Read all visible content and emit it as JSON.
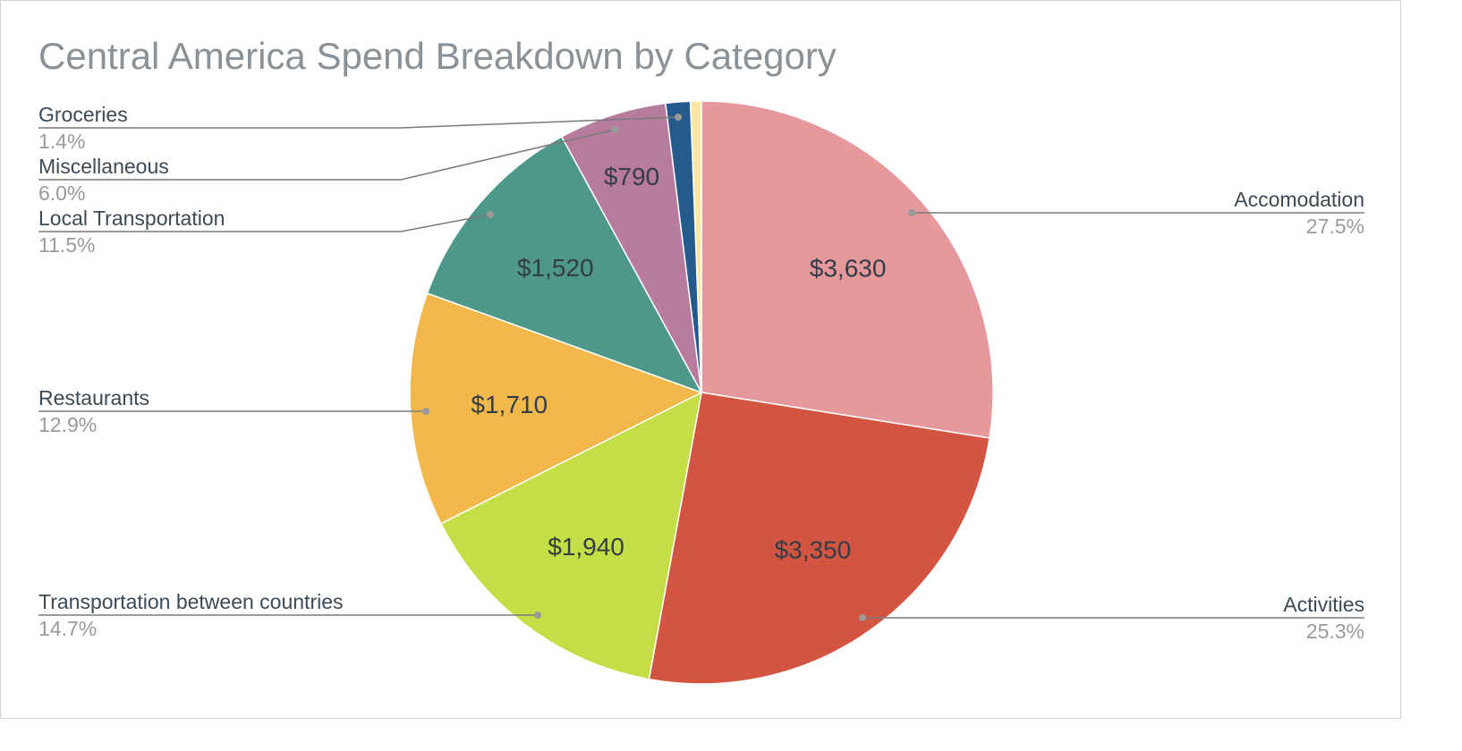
{
  "chart_data": {
    "type": "pie",
    "title": "Central America Spend Breakdown by Category",
    "slices": [
      {
        "label": "Accomodation",
        "value": 3630,
        "value_label": "$3,630",
        "percent": "27.5%",
        "color": "#e6999c"
      },
      {
        "label": "Activities",
        "value": 3350,
        "value_label": "$3,350",
        "percent": "25.3%",
        "color": "#d35541"
      },
      {
        "label": "Transportation between countries",
        "value": 1940,
        "value_label": "$1,940",
        "percent": "14.7%",
        "color": "#c4df45"
      },
      {
        "label": "Restaurants",
        "value": 1710,
        "value_label": "$1,710",
        "percent": "12.9%",
        "color": "#f2b84c"
      },
      {
        "label": "Local Transportation",
        "value": 1520,
        "value_label": "$1,520",
        "percent": "11.5%",
        "color": "#4e9889"
      },
      {
        "label": "Miscellaneous",
        "value": 790,
        "value_label": "$790",
        "percent": "6.0%",
        "color": "#b77c9d"
      },
      {
        "label": "Groceries",
        "value": 180,
        "value_label": "",
        "percent": "1.4%",
        "color": "#255b8c"
      },
      {
        "label": "",
        "value": 80,
        "value_label": "",
        "percent": "",
        "color": "#fbe7a3"
      }
    ]
  }
}
